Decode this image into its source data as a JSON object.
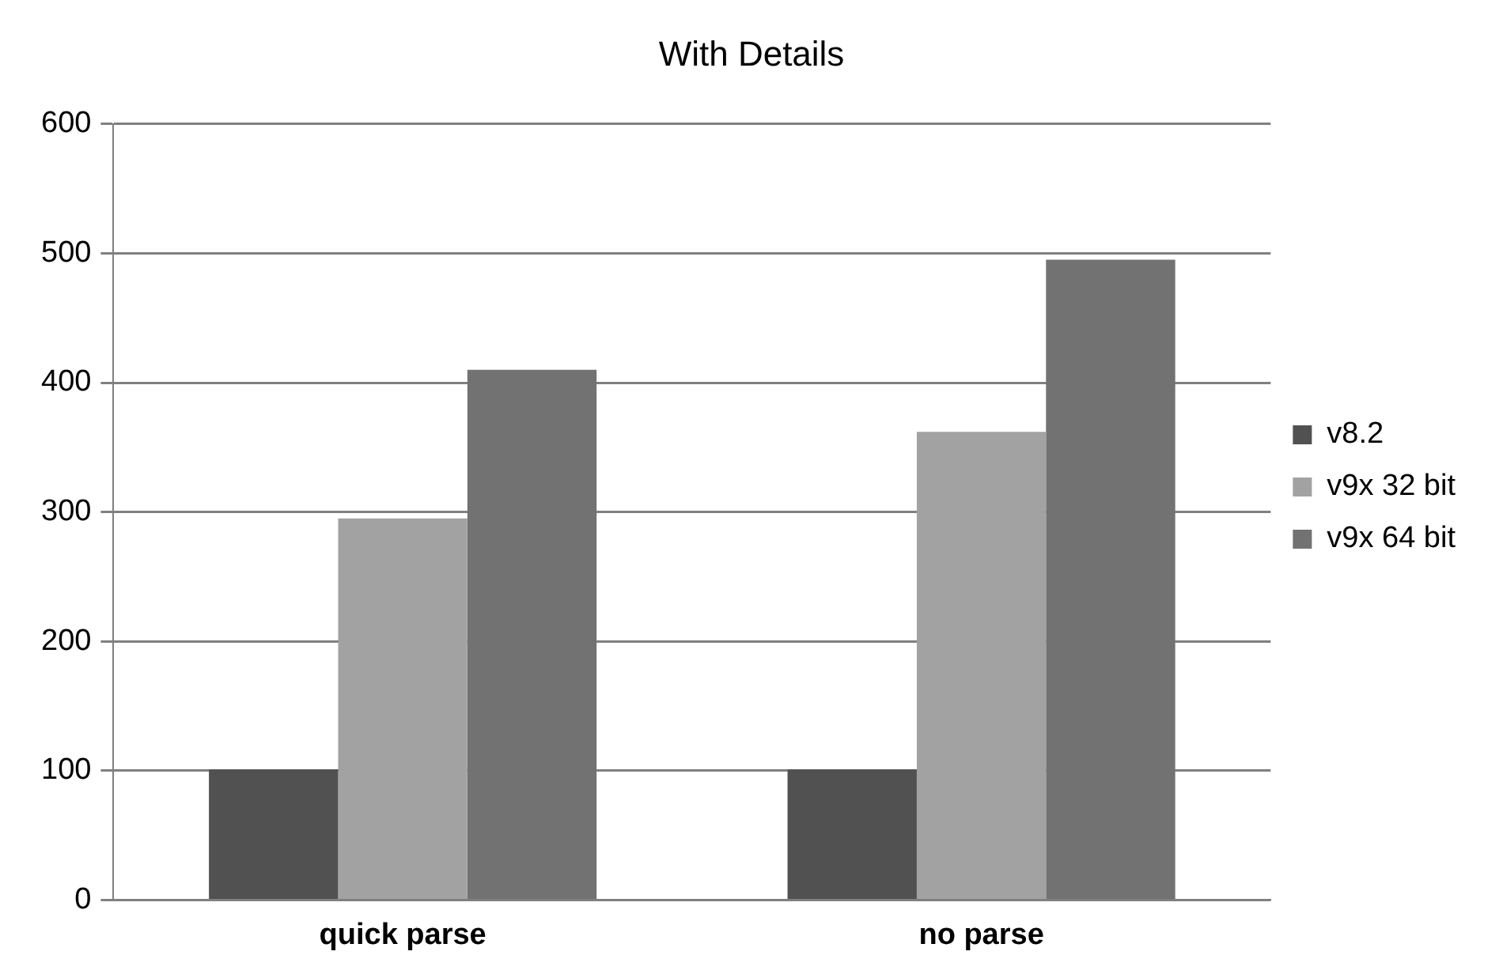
{
  "chart_data": {
    "type": "bar",
    "title": "With Details",
    "categories": [
      "quick parse",
      "no parse"
    ],
    "series": [
      {
        "name": "v8.2",
        "color": "#515151",
        "values": [
          101,
          101
        ]
      },
      {
        "name": "v9x 32 bit",
        "color": "#a2a2a2",
        "values": [
          295,
          362
        ]
      },
      {
        "name": "v9x 64 bit",
        "color": "#727272",
        "values": [
          410,
          495
        ]
      }
    ],
    "ylim": [
      0,
      600
    ],
    "yticks": [
      0,
      100,
      200,
      300,
      400,
      500,
      600
    ],
    "grid": "y",
    "legend": "right"
  }
}
